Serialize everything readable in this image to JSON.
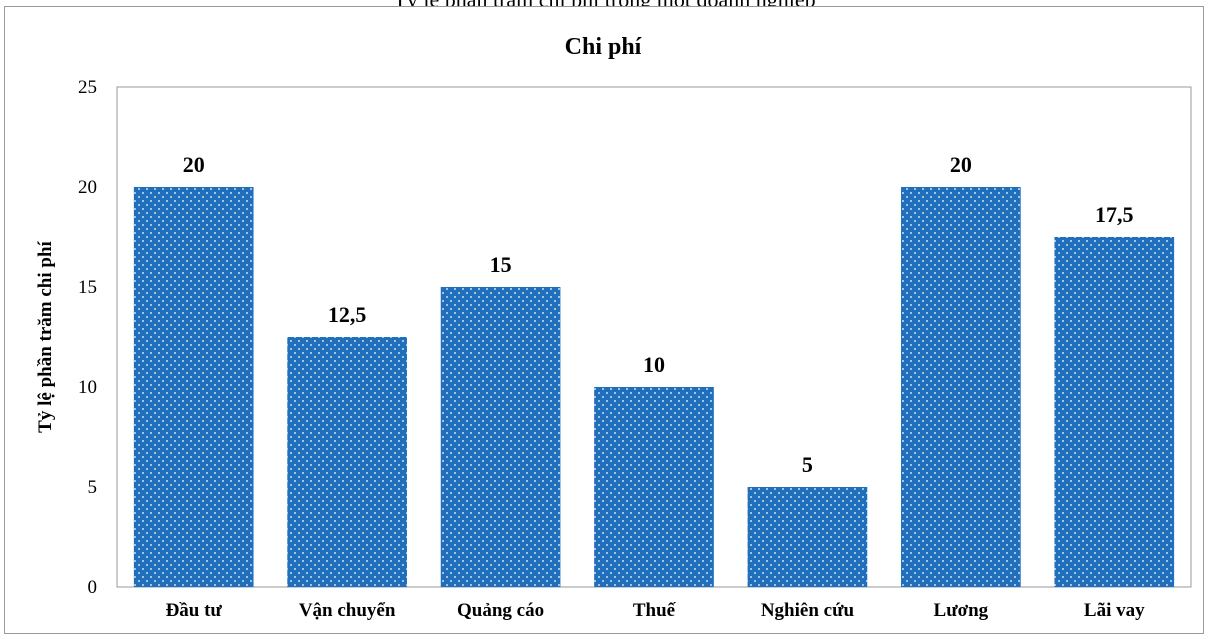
{
  "caption_cut": "Tỷ lệ phần trăm chi phí trong một doanh nghiệp",
  "chart_data": {
    "type": "bar",
    "title": "Chi phí",
    "xlabel": "",
    "ylabel": "Tỷ lệ phần trăm chi phí",
    "categories": [
      "Đầu tư",
      "Vận chuyển",
      "Quảng cáo",
      "Thuế",
      "Nghiên cứu",
      "Lương",
      "Lãi vay"
    ],
    "values": [
      20,
      12.5,
      15,
      10,
      5,
      20,
      17.5
    ],
    "data_labels": [
      "20",
      "12,5",
      "15",
      "10",
      "5",
      "20",
      "17,5"
    ],
    "ylim": [
      0,
      25
    ],
    "yticks": [
      0,
      5,
      10,
      15,
      20,
      25
    ],
    "grid": false,
    "legend": "none",
    "bar_color": "#1f6fbd",
    "bar_pattern": "white-dots"
  }
}
